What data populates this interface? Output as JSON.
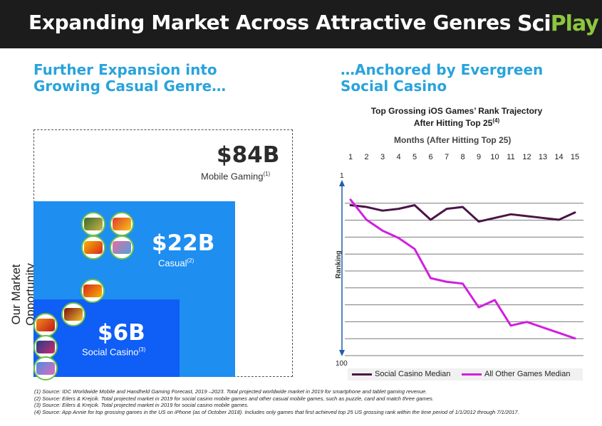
{
  "header": {
    "title": "Expanding Market Across Attractive Genres",
    "logo_part1": "Sci",
    "logo_part2": "Play",
    "bg_color": "#1c1c1c",
    "logo_accent": "#8dc63f"
  },
  "left": {
    "subhead_line1": "Further Expansion into",
    "subhead_line2": "Growing Casual Genre…",
    "vertical_label": "Our Market Opportunity",
    "mobile": {
      "value": "$84B",
      "label": "Mobile Gaming",
      "note": "(1)"
    },
    "casual": {
      "value": "$22B",
      "label": "Casual",
      "note": "(2)",
      "color": "#1e8ef0"
    },
    "social": {
      "value": "$6B",
      "label": "Social Casino",
      "note": "(3)",
      "color": "#0f5ef5"
    },
    "game_icons": [
      "game-logo-icon",
      "game-logo-icon",
      "game-logo-icon",
      "game-logo-icon",
      "game-logo-icon",
      "game-logo-icon",
      "game-logo-icon",
      "game-logo-icon",
      "game-logo-icon"
    ]
  },
  "right": {
    "subhead_line1": "…Anchored by Evergreen",
    "subhead_line2": "Social Casino"
  },
  "chart_data": {
    "type": "line",
    "title_line1": "Top Grossing iOS Games’ Rank Trajectory",
    "title_line2": "After Hitting Top 25",
    "title_note": "(4)",
    "xlabel": "Months (After Hitting Top 25)",
    "ylabel": "Ranking",
    "x": [
      1,
      2,
      3,
      4,
      5,
      6,
      7,
      8,
      9,
      10,
      11,
      12,
      13,
      14,
      15
    ],
    "x_ticks": [
      "1",
      "2",
      "3",
      "4",
      "5",
      "6",
      "7",
      "8",
      "9",
      "10",
      "11",
      "12",
      "13",
      "14",
      "15"
    ],
    "y_ticks": [
      "1",
      "100"
    ],
    "ylim": [
      1,
      100
    ],
    "y_inverted": true,
    "grid": true,
    "legend_position": "bottom",
    "series": [
      {
        "name": "Social Casino Median",
        "color": "#4b1548",
        "values": [
          16,
          17,
          19,
          18,
          16,
          24,
          18,
          17,
          25,
          23,
          21,
          22,
          23,
          24,
          20
        ]
      },
      {
        "name": "All Other Games Median",
        "color": "#d11fe0",
        "values": [
          13,
          24,
          30,
          34,
          40,
          56,
          58,
          59,
          72,
          68,
          82,
          80,
          83,
          86,
          89
        ]
      }
    ]
  },
  "footnotes": [
    "(1) Source: IDC Worldwide Mobile and Handheld Gaming Forecast, 2019 –2023. Total projected worldwide market in 2019 for smartphone and tablet gaming revenue.",
    "(2) Source: Eilers & Krejcik. Total projected market in 2019 for social casino mobile games and other casual mobile games, such as puzzle, card and match three games.",
    "(3) Source: Eilers & Krejcik. Total projected market in 2019 for social casino mobile games.",
    "(4) Source: App Annie for top grossing games in the US on iPhone (as of October 2018). Includes only games that first achieved top 25 US grossing rank within the time period of 1/1/2012 through 7/1/2017."
  ]
}
